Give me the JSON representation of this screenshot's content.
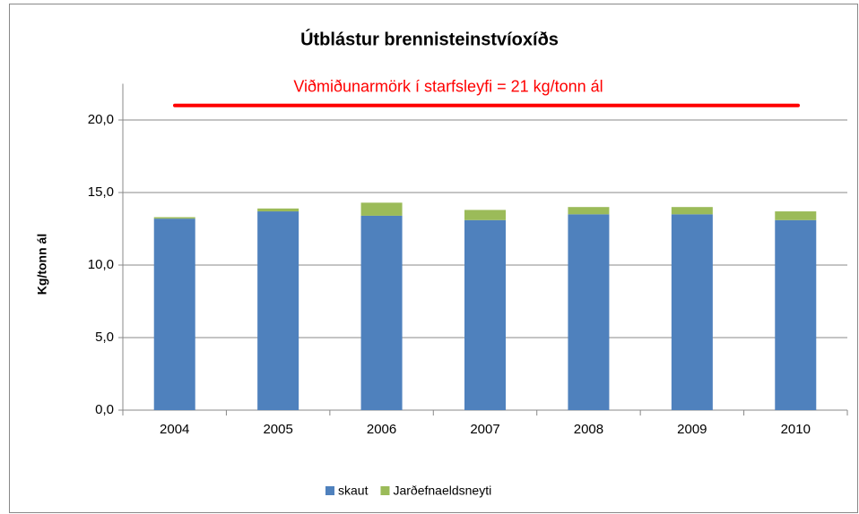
{
  "chart_data": {
    "type": "stacked_bar",
    "title": "Útblástur brennisteinstvíoxíðs",
    "y_label": "Kg/tonn ál",
    "categories": [
      "2004",
      "2005",
      "2006",
      "2007",
      "2008",
      "2009",
      "2010"
    ],
    "series": [
      {
        "name": "skaut",
        "color": "#4f81bd",
        "values": [
          13.2,
          13.7,
          13.4,
          13.1,
          13.5,
          13.5,
          13.1
        ]
      },
      {
        "name": "Jarðefnaeldsneyti",
        "color": "#9bbb59",
        "values": [
          0.1,
          0.2,
          0.9,
          0.7,
          0.5,
          0.5,
          0.6
        ]
      }
    ],
    "reference_line": {
      "value": 21,
      "label": "Viðmiðunarmörk í starfsleyfi = 21 kg/tonn ál",
      "color": "#ff0000"
    },
    "ylim": [
      0,
      22.5
    ],
    "yticks": [
      {
        "value": 0,
        "label": "0,0"
      },
      {
        "value": 5,
        "label": "5,0"
      },
      {
        "value": 10,
        "label": "10,0"
      },
      {
        "value": 15,
        "label": "15,0"
      },
      {
        "value": 20,
        "label": "20,0"
      }
    ],
    "grid": true,
    "legend": "bottom"
  }
}
